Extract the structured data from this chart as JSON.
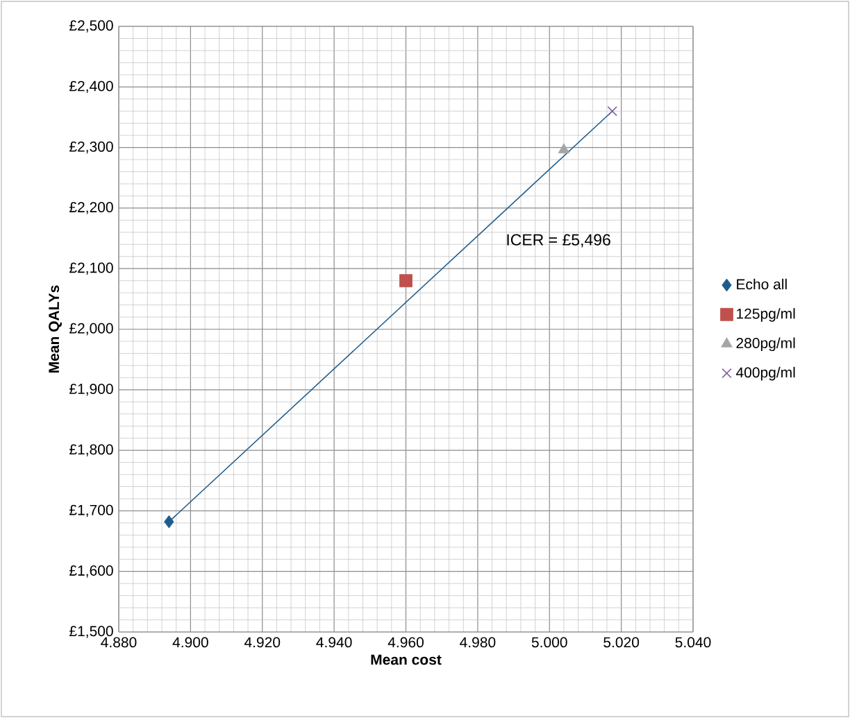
{
  "chart_data": {
    "type": "scatter",
    "xlabel": "Mean cost",
    "ylabel": "Mean QALYs",
    "series": [
      {
        "name": "Echo all",
        "color": "#1f5c8b",
        "marker": "diamond",
        "x": [
          4.894
        ],
        "values": [
          1682
        ]
      },
      {
        "name": "125pg/ml",
        "color": "#c0504d",
        "marker": "square",
        "x": [
          4.96
        ],
        "values": [
          2080
        ]
      },
      {
        "name": "280pg/ml",
        "color": "#a5a5a5",
        "marker": "triangle",
        "x": [
          5.004
        ],
        "values": [
          2296
        ]
      },
      {
        "name": "400pg/ml",
        "color": "#8064a2",
        "marker": "cross",
        "x": [
          5.0175
        ],
        "values": [
          2360
        ]
      },
      {
        "type": "line",
        "color": "#1f5c8b",
        "marker": "none",
        "x": [
          4.894,
          5.0175
        ],
        "values": [
          1682,
          2360
        ]
      }
    ],
    "xlim": [
      4.88,
      5.04
    ],
    "xticks": [
      {
        "value": 4.88,
        "label": "4.880"
      },
      {
        "value": 4.9,
        "label": "4.900"
      },
      {
        "value": 4.92,
        "label": "4.920"
      },
      {
        "value": 4.94,
        "label": "4.940"
      },
      {
        "value": 4.96,
        "label": "4.960"
      },
      {
        "value": 4.98,
        "label": "4.980"
      },
      {
        "value": 5.0,
        "label": "5.000"
      },
      {
        "value": 5.02,
        "label": "5.020"
      },
      {
        "value": 5.04,
        "label": "5.040"
      }
    ],
    "ylim": [
      1500,
      2500
    ],
    "yticks": [
      {
        "value": 1500,
        "label": "£1,500"
      },
      {
        "value": 1600,
        "label": "£1,600"
      },
      {
        "value": 1700,
        "label": "£1,700"
      },
      {
        "value": 1800,
        "label": "£1,800"
      },
      {
        "value": 1900,
        "label": "£1,900"
      },
      {
        "value": 2000,
        "label": "£2,000"
      },
      {
        "value": 2100,
        "label": "£2,100"
      },
      {
        "value": 2200,
        "label": "£2,200"
      },
      {
        "value": 2300,
        "label": "£2,300"
      },
      {
        "value": 2400,
        "label": "£2,400"
      },
      {
        "value": 2500,
        "label": "£2,500"
      }
    ],
    "grid": true,
    "legend": "right",
    "annotations": [
      "ICER = £5,496"
    ]
  }
}
